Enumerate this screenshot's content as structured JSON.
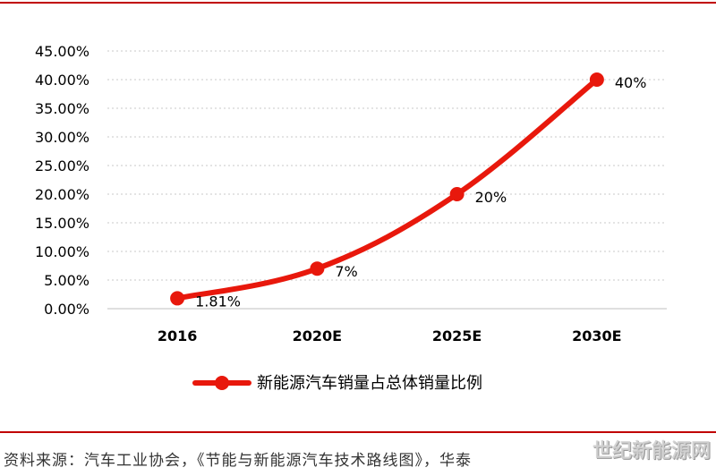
{
  "chart_data": {
    "type": "line",
    "categories": [
      "2016",
      "2020E",
      "2025E",
      "2030E"
    ],
    "series": [
      {
        "name": "新能源汽车销量占总体销量比例",
        "values": [
          1.81,
          7,
          20,
          40
        ],
        "data_labels": [
          "1.81%",
          "7%",
          "20%",
          "40%"
        ],
        "color": "#e8180c"
      }
    ],
    "y_ticks": [
      "0.00%",
      "5.00%",
      "10.00%",
      "15.00%",
      "20.00%",
      "25.00%",
      "30.00%",
      "35.00%",
      "40.00%",
      "45.00%"
    ],
    "ylim": [
      0,
      45
    ],
    "grid": "horizontal-dotted",
    "legend_position": "bottom"
  },
  "source_note": "资料来源：汽车工业协会，《节能与新能源汽车技术路线图》，华泰",
  "watermark": "世纪新能源网"
}
